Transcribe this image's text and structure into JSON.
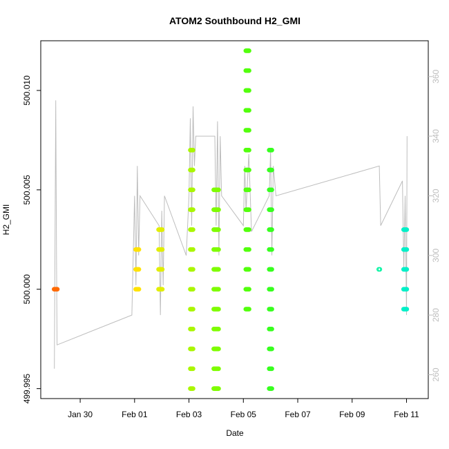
{
  "chart_data": {
    "type": "scatter",
    "title": "ATOM2 Southbound H2_GMI",
    "xlabel": "Date",
    "ylabel": "H2_GMI",
    "x_ticks": [
      "Jan 30",
      "Feb 01",
      "Feb 03",
      "Feb 05",
      "Feb 07",
      "Feb 09",
      "Feb 11"
    ],
    "x_tick_days": [
      30,
      32,
      34,
      36,
      38,
      40,
      42
    ],
    "xlim_days": [
      28.55,
      42.8
    ],
    "y_ticks": [
      499.995,
      500.0,
      500.005,
      500.01
    ],
    "y_tick_labels": [
      "499.995",
      "500.000",
      "500.005",
      "500.010"
    ],
    "ylim": [
      499.9945,
      500.0125
    ],
    "y2_ticks": [
      260,
      280,
      300,
      320,
      340,
      360
    ],
    "y2lim": [
      252,
      372
    ],
    "grid": false,
    "colors": {
      "scatter_gradient": [
        "#ff6a00",
        "#ffea00",
        "#66ff00",
        "#00ff44",
        "#00f0c8"
      ],
      "trace_line": "#bdbdbd",
      "right_axis": "#bdbdbd"
    },
    "scatter_groups": [
      {
        "day": 29.1,
        "spread": 0.12,
        "values": [
          500.0
        ]
      },
      {
        "day": 32.1,
        "spread": 0.12,
        "values": [
          500.0,
          500.001,
          500.002
        ]
      },
      {
        "day": 32.95,
        "spread": 0.14,
        "values": [
          500.0,
          500.001,
          500.002,
          500.003
        ]
      },
      {
        "day": 34.1,
        "spread": 0.1,
        "values": [
          499.995,
          499.996,
          499.997,
          499.998,
          499.999,
          500.0,
          500.001,
          500.002,
          500.003,
          500.004,
          500.005,
          500.006,
          500.007
        ]
      },
      {
        "day": 35.0,
        "spread": 0.18,
        "values": [
          499.995,
          499.996,
          499.997,
          499.998,
          499.999,
          500.0,
          500.001,
          500.002,
          500.003,
          500.004,
          500.005
        ]
      },
      {
        "day": 36.15,
        "spread": 0.12,
        "values": [
          499.999,
          500.0,
          500.001,
          500.002,
          500.003,
          500.004,
          500.005,
          500.006,
          500.007,
          500.008,
          500.009,
          500.01,
          500.011,
          500.012
        ]
      },
      {
        "day": 37.0,
        "spread": 0.1,
        "values": [
          499.995,
          499.996,
          499.997,
          499.998,
          499.999,
          500.0,
          500.001,
          500.002,
          500.003,
          500.004,
          500.005,
          500.006,
          500.007
        ]
      },
      {
        "day": 41.0,
        "spread": 0.04,
        "values": [
          500.001
        ]
      },
      {
        "day": 41.95,
        "spread": 0.12,
        "values": [
          499.999,
          500.0,
          500.001,
          500.002,
          500.003
        ]
      }
    ],
    "trace": {
      "axis": "right",
      "points": [
        [
          29.05,
          262
        ],
        [
          29.06,
          280
        ],
        [
          29.1,
          352
        ],
        [
          29.13,
          300
        ],
        [
          29.15,
          270
        ],
        [
          31.9,
          280
        ],
        [
          32.0,
          320
        ],
        [
          32.05,
          290
        ],
        [
          32.1,
          330
        ],
        [
          32.15,
          300
        ],
        [
          32.2,
          320
        ],
        [
          32.9,
          310
        ],
        [
          32.95,
          280
        ],
        [
          33.0,
          315
        ],
        [
          33.05,
          290
        ],
        [
          33.1,
          320
        ],
        [
          33.9,
          300
        ],
        [
          34.0,
          320
        ],
        [
          34.05,
          346
        ],
        [
          34.1,
          310
        ],
        [
          34.15,
          350
        ],
        [
          34.2,
          330
        ],
        [
          34.25,
          340
        ],
        [
          34.95,
          340
        ],
        [
          35.0,
          310
        ],
        [
          35.05,
          345
        ],
        [
          35.1,
          300
        ],
        [
          35.15,
          340
        ],
        [
          35.2,
          320
        ],
        [
          36.0,
          310
        ],
        [
          36.05,
          330
        ],
        [
          36.1,
          315
        ],
        [
          36.2,
          334
        ],
        [
          36.3,
          308
        ],
        [
          36.95,
          320
        ],
        [
          37.0,
          335
        ],
        [
          37.05,
          300
        ],
        [
          37.1,
          330
        ],
        [
          37.2,
          320
        ],
        [
          41.0,
          330
        ],
        [
          41.05,
          310
        ],
        [
          41.85,
          325
        ],
        [
          41.9,
          295
        ],
        [
          41.95,
          320
        ],
        [
          42.0,
          280
        ],
        [
          42.02,
          340
        ]
      ]
    }
  }
}
